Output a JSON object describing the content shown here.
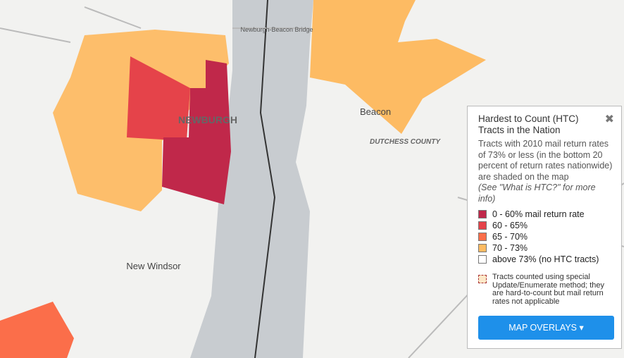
{
  "map_labels": {
    "bridge": "Newburgh-Beacon Bridge",
    "newburgh": "NEWBURGH",
    "beacon": "Beacon",
    "county": "DUTCHESS COUNTY",
    "new_windsor": "New Windsor"
  },
  "legend": {
    "title": "Hardest to Count (HTC) Tracts in the Nation",
    "description": "Tracts with 2010 mail return rates of 73% or less (in the bottom 20 percent of return rates nationwide) are shaded on the map",
    "note": "(See \"What is HTC?\" for more info)",
    "items": [
      {
        "label": "0 - 60% mail return rate",
        "color": "#c0284a"
      },
      {
        "label": "60 - 65%",
        "color": "#e5434a"
      },
      {
        "label": "65 - 70%",
        "color": "#fb6e4a"
      },
      {
        "label": "70 - 73%",
        "color": "#fdbb63"
      },
      {
        "label": "above 73% (no HTC tracts)",
        "color": "#ffffff"
      }
    ],
    "special": "Tracts counted using special Update/Enumerate method; they are hard-to-count but mail return rates not applicable",
    "button": "MAP OVERLAYS"
  }
}
